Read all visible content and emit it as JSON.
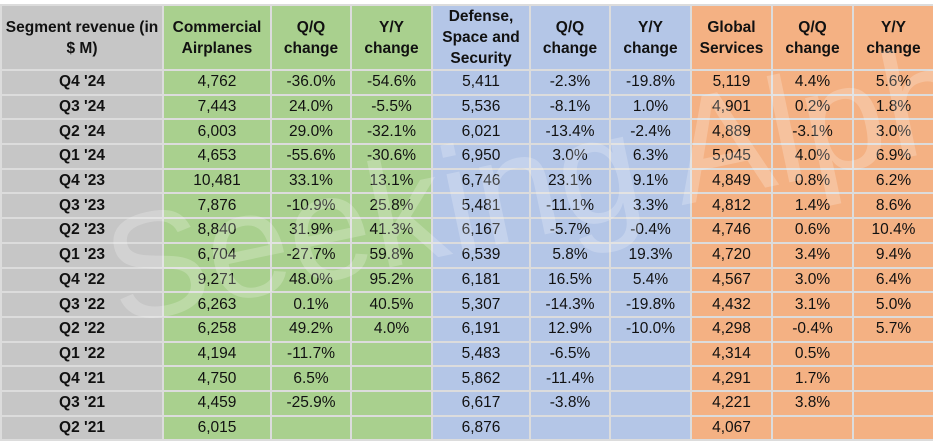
{
  "headers": [
    "Segment revenue (in $ M)",
    "Commercial Airplanes",
    "Q/Q change",
    "Y/Y change",
    "Defense, Space and Security",
    "Q/Q change",
    "Y/Y change",
    "Global Services",
    "Q/Q change",
    "Y/Y change"
  ],
  "rows": [
    [
      "Q4 '24",
      "4,762",
      "-36.0%",
      "-54.6%",
      "5,411",
      "-2.3%",
      "-19.8%",
      "5,119",
      "4.4%",
      "5.6%"
    ],
    [
      "Q3 '24",
      "7,443",
      "24.0%",
      "-5.5%",
      "5,536",
      "-8.1%",
      "1.0%",
      "4,901",
      "0.2%",
      "1.8%"
    ],
    [
      "Q2 '24",
      "6,003",
      "29.0%",
      "-32.1%",
      "6,021",
      "-13.4%",
      "-2.4%",
      "4,889",
      "-3.1%",
      "3.0%"
    ],
    [
      "Q1 '24",
      "4,653",
      "-55.6%",
      "-30.6%",
      "6,950",
      "3.0%",
      "6.3%",
      "5,045",
      "4.0%",
      "6.9%"
    ],
    [
      "Q4 '23",
      "10,481",
      "33.1%",
      "13.1%",
      "6,746",
      "23.1%",
      "9.1%",
      "4,849",
      "0.8%",
      "6.2%"
    ],
    [
      "Q3 '23",
      "7,876",
      "-10.9%",
      "25.8%",
      "5,481",
      "-11.1%",
      "3.3%",
      "4,812",
      "1.4%",
      "8.6%"
    ],
    [
      "Q2 '23",
      "8,840",
      "31.9%",
      "41.3%",
      "6,167",
      "-5.7%",
      "-0.4%",
      "4,746",
      "0.6%",
      "10.4%"
    ],
    [
      "Q1 '23",
      "6,704",
      "-27.7%",
      "59.8%",
      "6,539",
      "5.8%",
      "19.3%",
      "4,720",
      "3.4%",
      "9.4%"
    ],
    [
      "Q4 '22",
      "9,271",
      "48.0%",
      "95.2%",
      "6,181",
      "16.5%",
      "5.4%",
      "4,567",
      "3.0%",
      "6.4%"
    ],
    [
      "Q3 '22",
      "6,263",
      "0.1%",
      "40.5%",
      "5,307",
      "-14.3%",
      "-19.8%",
      "4,432",
      "3.1%",
      "5.0%"
    ],
    [
      "Q2 '22",
      "6,258",
      "49.2%",
      "4.0%",
      "6,191",
      "12.9%",
      "-10.0%",
      "4,298",
      "-0.4%",
      "5.7%"
    ],
    [
      "Q1 '22",
      "4,194",
      "-11.7%",
      "",
      "5,483",
      "-6.5%",
      "",
      "4,314",
      "0.5%",
      ""
    ],
    [
      "Q4 '21",
      "4,750",
      "6.5%",
      "",
      "5,862",
      "-11.4%",
      "",
      "4,291",
      "1.7%",
      ""
    ],
    [
      "Q3 '21",
      "4,459",
      "-25.9%",
      "",
      "6,617",
      "-3.8%",
      "",
      "4,221",
      "3.8%",
      ""
    ],
    [
      "Q2 '21",
      "6,015",
      "",
      "",
      "6,876",
      "",
      "",
      "4,067",
      "",
      ""
    ]
  ],
  "colors": {
    "label": "#c6c6c6",
    "commercial": "#a9d08e",
    "defense": "#b4c6e7",
    "services": "#f4b183"
  },
  "watermark": "Seeking Alpha"
}
